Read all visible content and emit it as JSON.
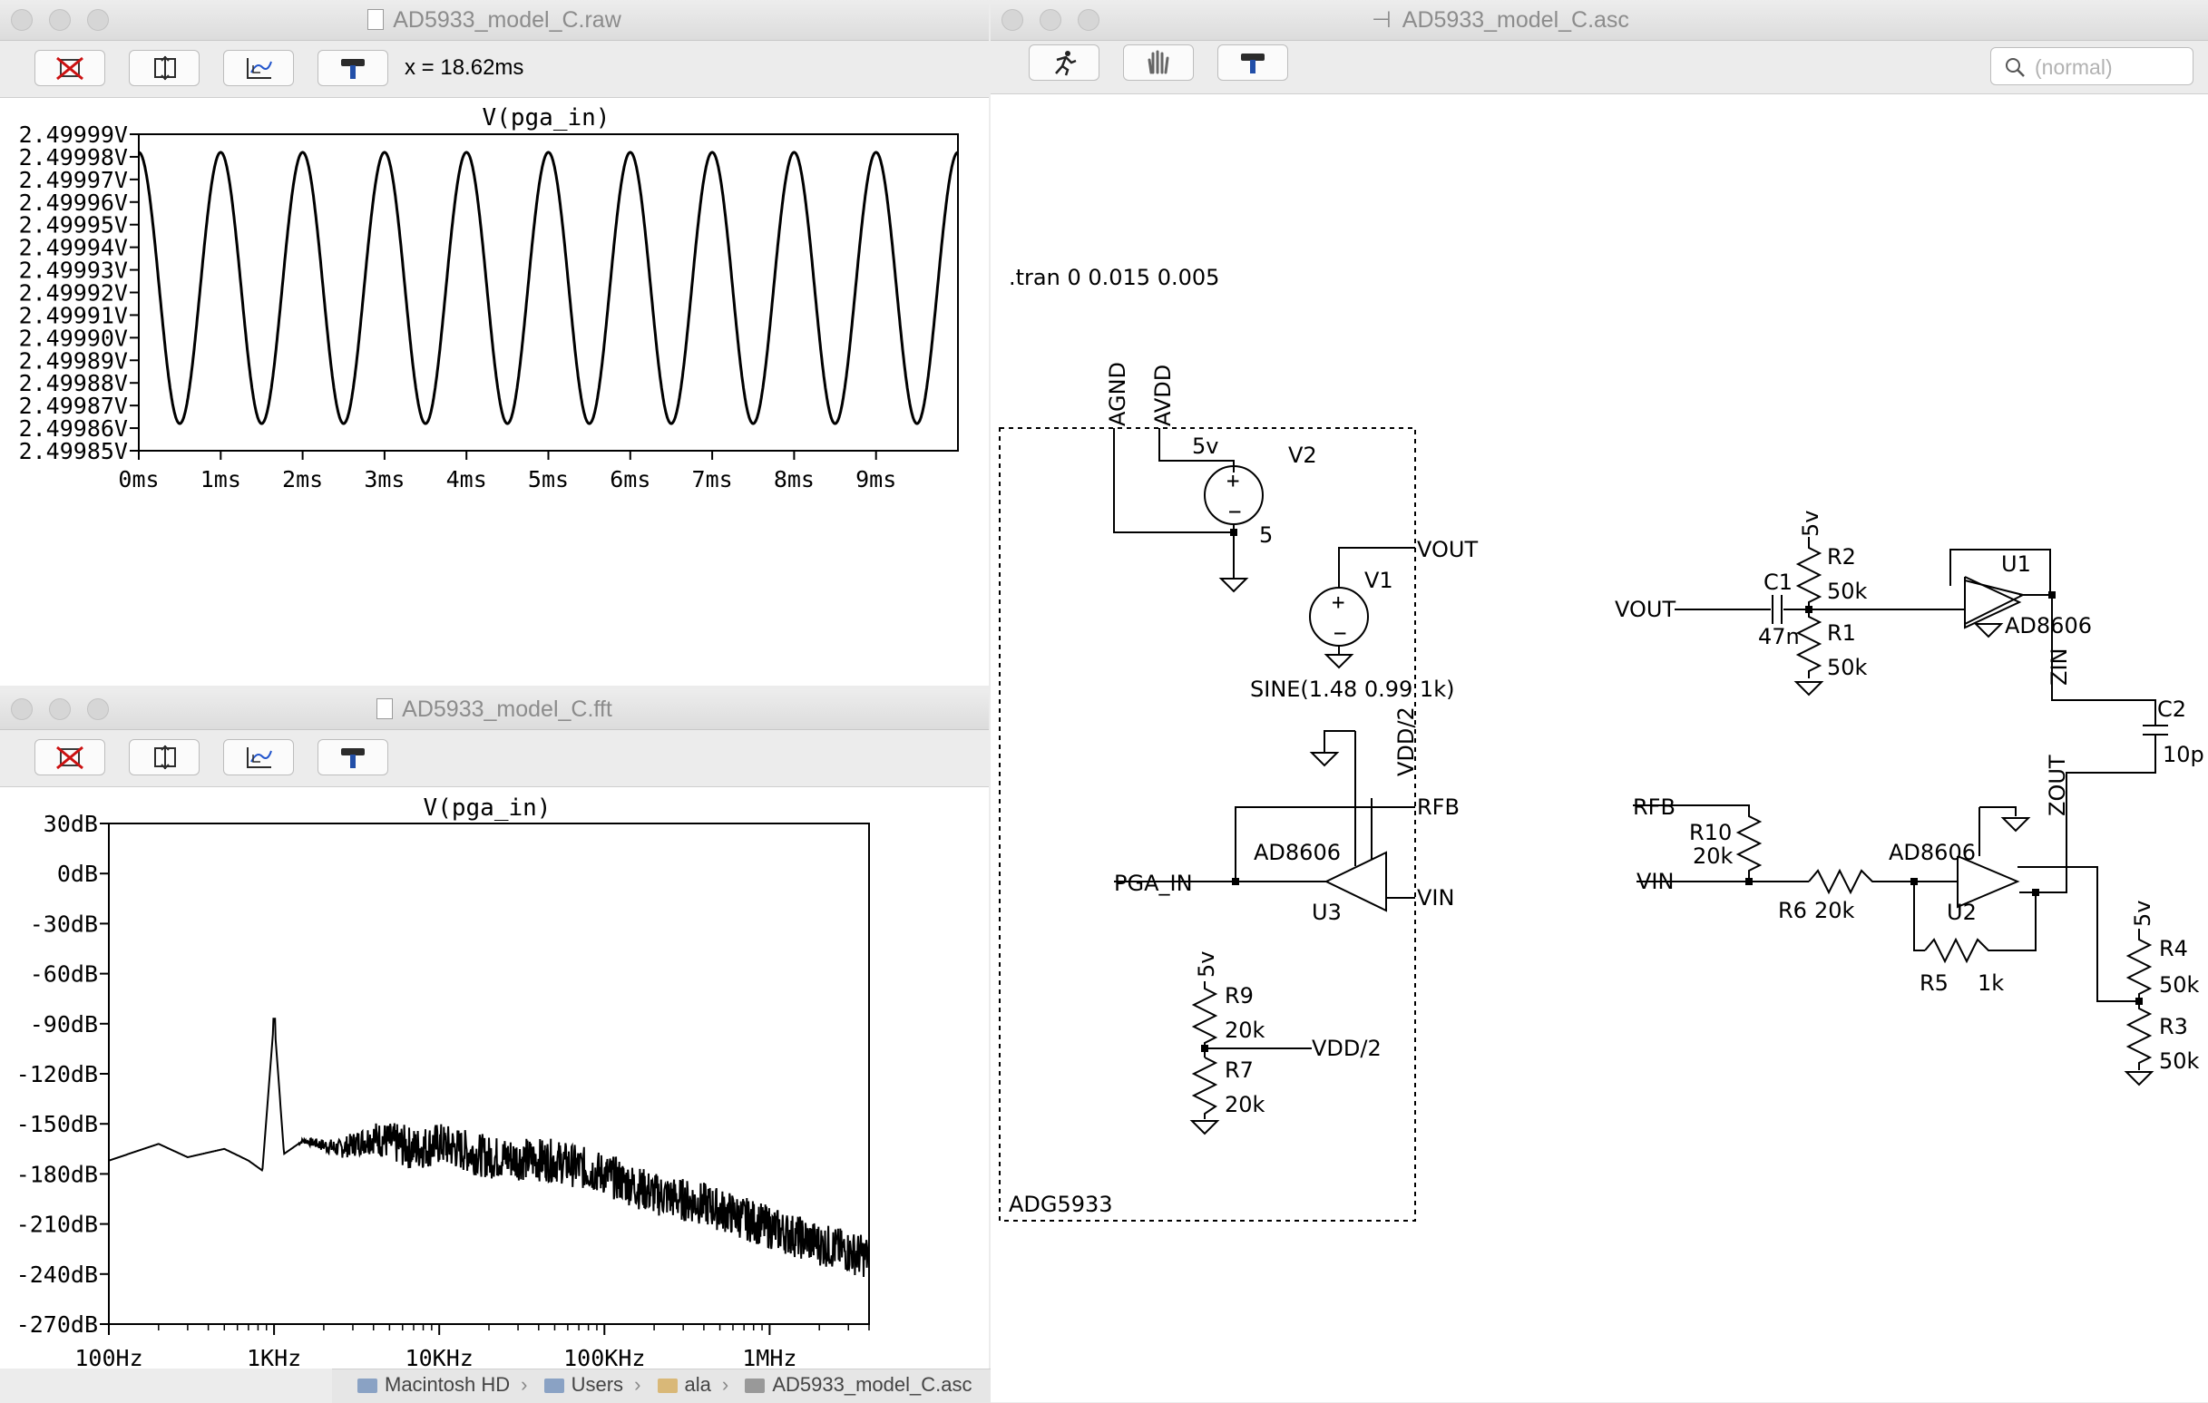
{
  "raw_window": {
    "title": "AD5933_model_C.raw",
    "cursor_readout": "x = 18.62ms",
    "toolbar": [
      "autorange-icon",
      "zoom-fit-icon",
      "pan-icon",
      "hammer-icon"
    ],
    "plot": {
      "trace_label": "V(pga_in)",
      "y_ticks": [
        "2.49999V",
        "2.49998V",
        "2.49997V",
        "2.49996V",
        "2.49995V",
        "2.49994V",
        "2.49993V",
        "2.49992V",
        "2.49991V",
        "2.49990V",
        "2.49989V",
        "2.49988V",
        "2.49987V",
        "2.49986V",
        "2.49985V"
      ],
      "x_ticks": [
        "0ms",
        "1ms",
        "2ms",
        "3ms",
        "4ms",
        "5ms",
        "6ms",
        "7ms",
        "8ms",
        "9ms"
      ]
    }
  },
  "fft_window": {
    "title": "AD5933_model_C.fft",
    "toolbar": [
      "autorange-icon",
      "zoom-fit-icon",
      "pan-icon",
      "hammer-icon"
    ],
    "plot": {
      "trace_label": "V(pga_in)",
      "y_ticks": [
        "30dB",
        "0dB",
        "-30dB",
        "-60dB",
        "-90dB",
        "-120dB",
        "-150dB",
        "-180dB",
        "-210dB",
        "-240dB",
        "-270dB"
      ],
      "x_ticks": [
        "100Hz",
        "1KHz",
        "10KHz",
        "100KHz",
        "1MHz"
      ]
    }
  },
  "asc_window": {
    "title": "AD5933_model_C.asc",
    "toolbar": [
      "run-icon",
      "halt-hand-icon",
      "hammer-icon"
    ],
    "search_placeholder": "(normal)",
    "schematic": {
      "directive": ".tran 0 0.015 0.005",
      "box_label": "ADG5933",
      "labels": {
        "agnd": "AGND",
        "avdd": "AVDD",
        "v5": "5v",
        "v2": "V2",
        "v2val": "5",
        "v1": "V1",
        "vout": "VOUT",
        "sine": "SINE(1.48 0.99 1k)",
        "vddhalf": "VDD/2",
        "rfb": "RFB",
        "ad8606": "AD8606",
        "pgain": "PGA_IN",
        "u3": "U3",
        "vin": "VIN",
        "r9": "R9",
        "r9v": "20k",
        "r7": "R7",
        "r7v": "20k",
        "r2": "R2",
        "r2v": "50k",
        "r1": "R1",
        "r1v": "50k",
        "c1": "C1",
        "c1v": "47n",
        "u1": "U1",
        "zin": "ZIN",
        "c2": "C2",
        "c2v": "10p",
        "zout": "ZOUT",
        "r10": "R10",
        "r10v": "20k",
        "r6": "R6",
        "r6v": "20k",
        "r5": "R5",
        "r5v": "1k",
        "u2": "U2",
        "r4": "R4",
        "r4v": "50k",
        "r3": "R3",
        "r3v": "50k"
      }
    }
  },
  "statusbar": {
    "crumbs": [
      "Macintosh HD",
      "Users",
      "ala",
      "AD5933_model_C.asc"
    ]
  },
  "chart_data": [
    {
      "type": "line",
      "title": "V(pga_in)",
      "xlabel": "",
      "ylabel": "",
      "xlim": [
        0,
        10
      ],
      "x_unit": "ms",
      "ylim": [
        2.49985,
        2.49999
      ],
      "series": [
        {
          "x": [
            0.0,
            0.5,
            1.0,
            1.5,
            2.0,
            2.5,
            3.0,
            3.5,
            4.0,
            4.5,
            5.0,
            5.5,
            6.0,
            6.5,
            7.0,
            7.5,
            8.0,
            8.5,
            9.0,
            9.5,
            10.0
          ],
          "y": [
            2.49998,
            2.499862,
            2.499982,
            2.499862,
            2.499982,
            2.499862,
            2.499982,
            2.499862,
            2.499982,
            2.499862,
            2.499982,
            2.499862,
            2.499982,
            2.499862,
            2.499982,
            2.499862,
            2.499982,
            2.499862,
            2.499982,
            2.499862,
            2.499982
          ]
        }
      ],
      "grid": false
    },
    {
      "type": "line",
      "title": "V(pga_in)",
      "xlabel": "",
      "ylabel": "",
      "x_scale": "log",
      "xlim": [
        100,
        4000000
      ],
      "x_unit": "Hz",
      "ylim": [
        -270,
        30
      ],
      "y_unit": "dB",
      "series": [
        {
          "x": [
            100,
            200,
            300,
            500,
            700,
            850,
            1000,
            1150,
            1500,
            2500,
            4000,
            7000,
            10000,
            20000,
            50000,
            100000,
            200000,
            400000,
            1000000,
            2000000,
            4000000
          ],
          "y": [
            -172,
            -162,
            -170,
            -165,
            -172,
            -178,
            -87,
            -168,
            -160,
            -165,
            -158,
            -165,
            -162,
            -170,
            -172,
            -180,
            -192,
            -198,
            -212,
            -222,
            -230
          ]
        }
      ],
      "grid": false
    }
  ]
}
